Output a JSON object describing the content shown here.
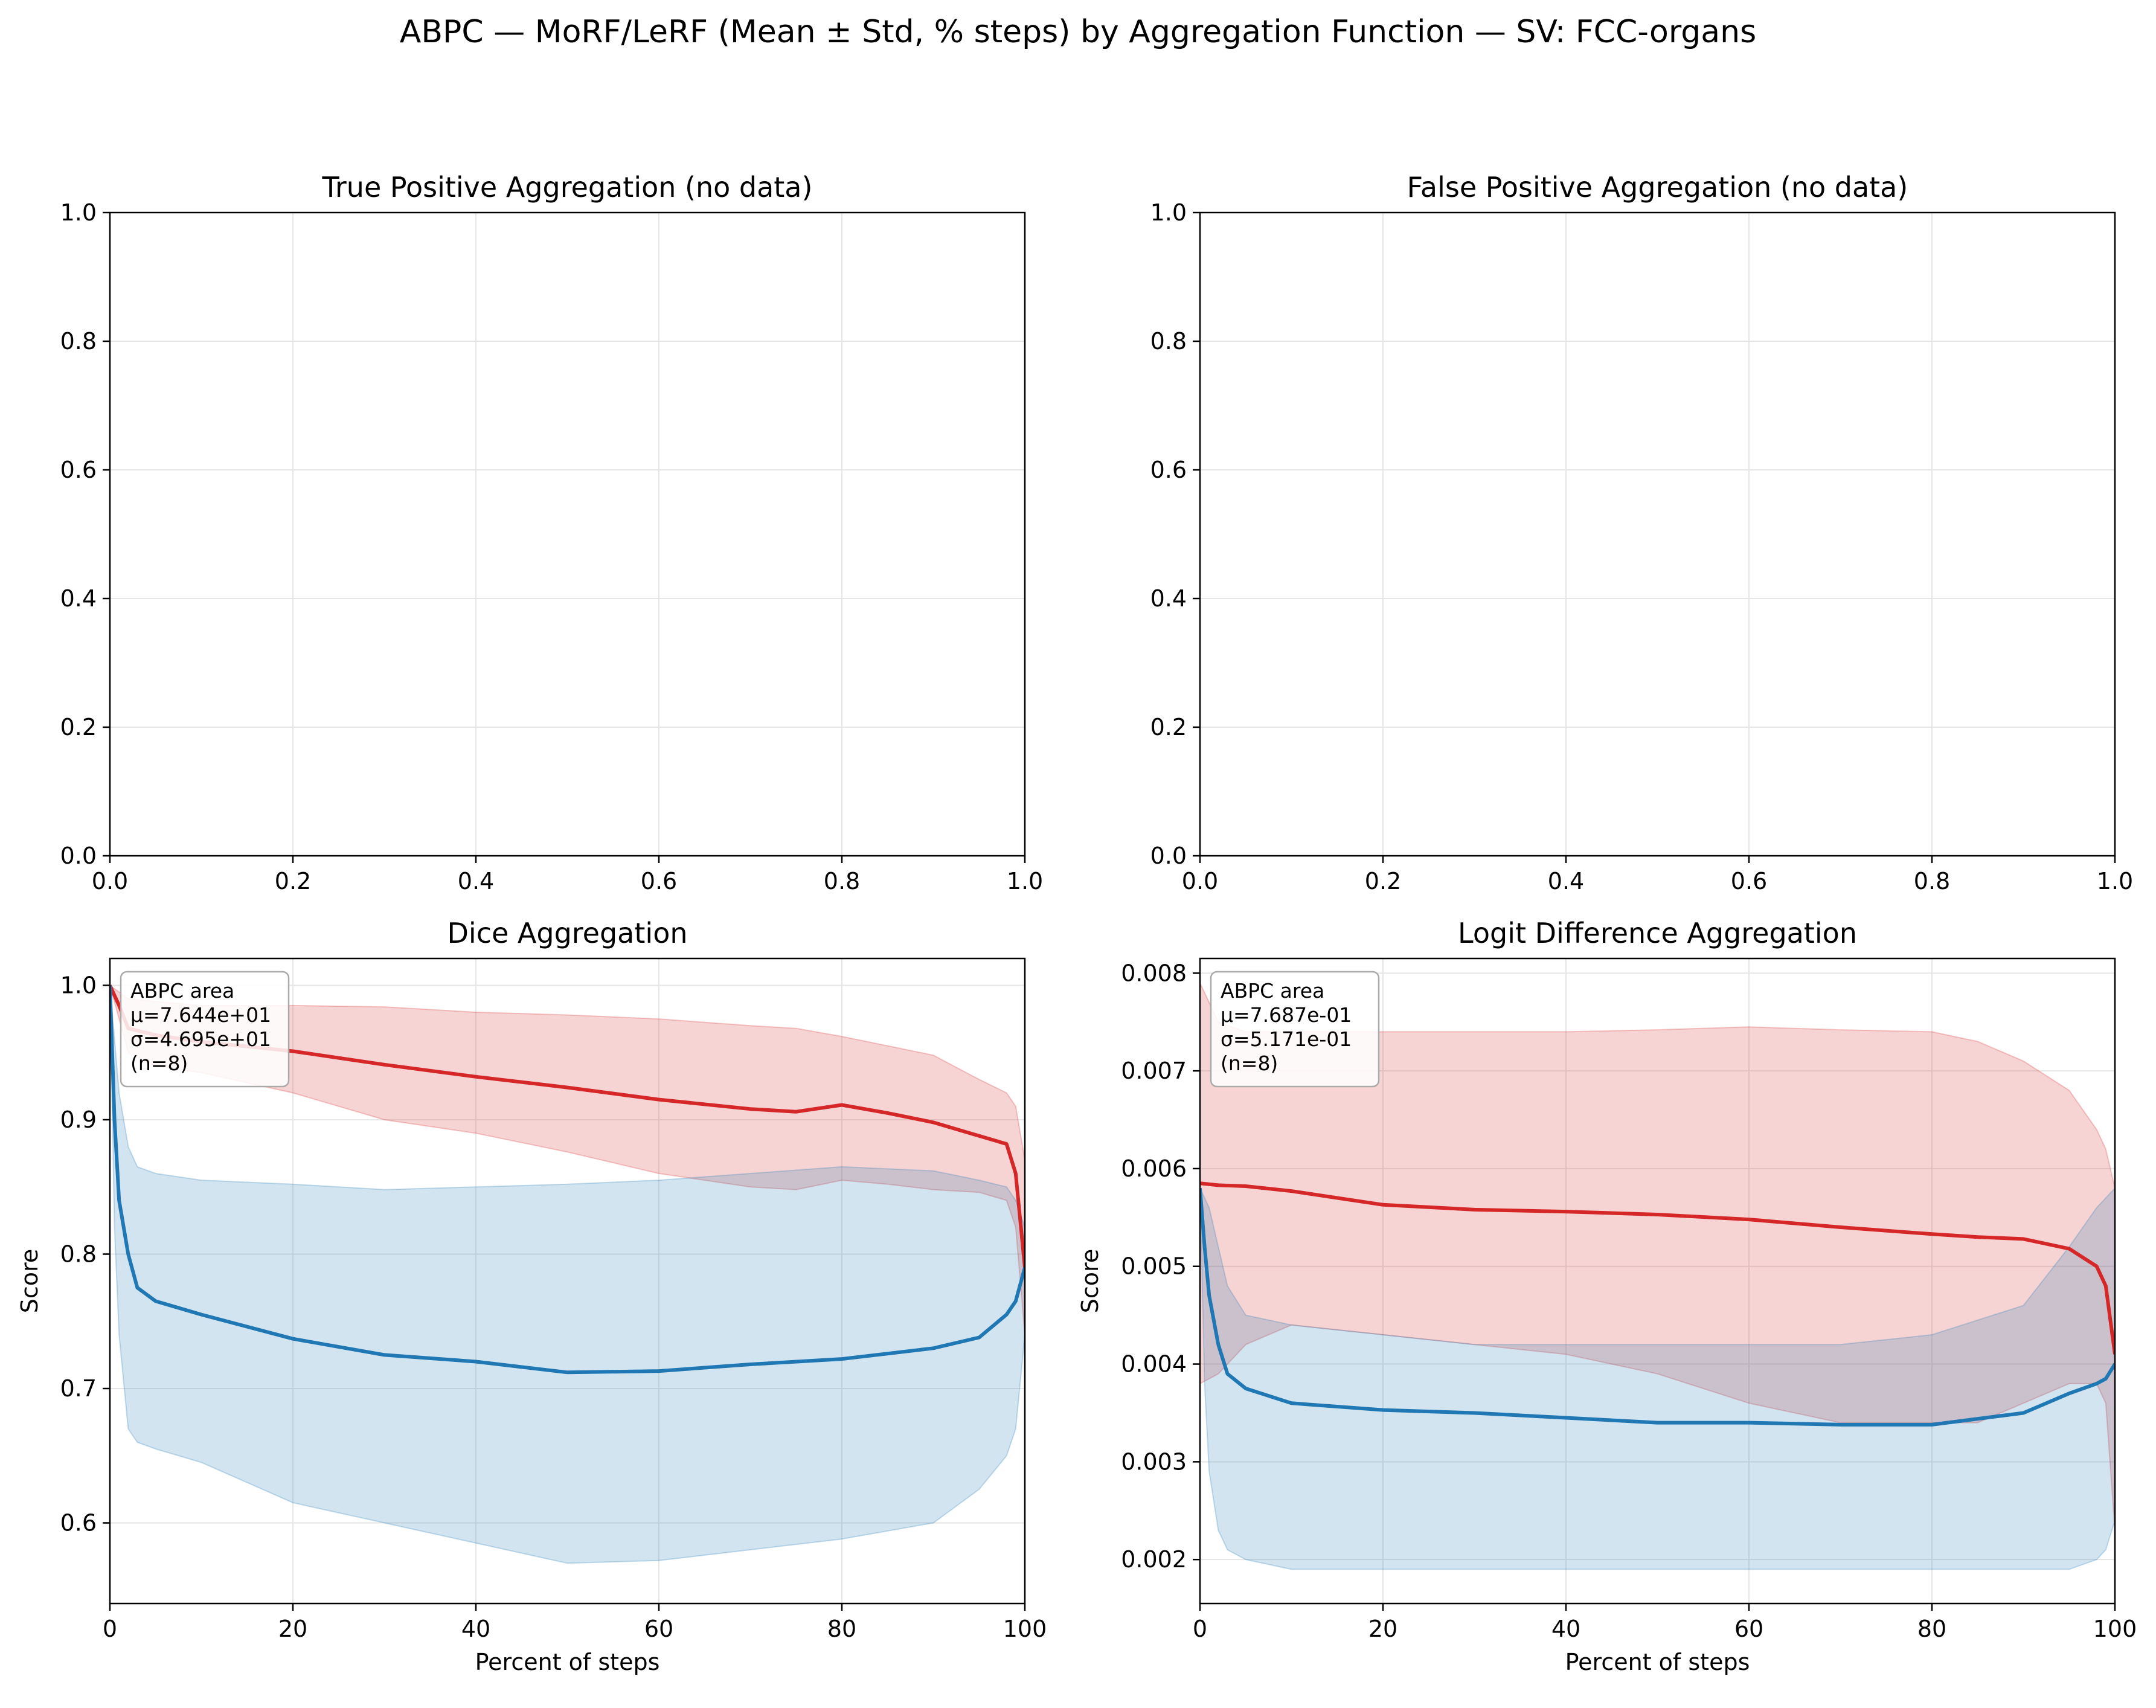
{
  "figure": {
    "suptitle": "ABPC — MoRF/LeRF (Mean ± Std, % steps) by Aggregation Function — SV: FCC-organs"
  },
  "colors": {
    "morf": "#d62728",
    "lerf": "#1f77b4",
    "axis": "#000000",
    "grid": "#e6e6e6"
  },
  "chart_data": [
    {
      "type": "line",
      "title": "True Positive Aggregation (no data)",
      "xlabel": "",
      "ylabel": "",
      "xlim": [
        0,
        1
      ],
      "ylim": [
        0,
        1
      ],
      "xticks": [
        "0.0",
        "0.2",
        "0.4",
        "0.6",
        "0.8",
        "1.0"
      ],
      "yticks": [
        "0.0",
        "0.2",
        "0.4",
        "0.6",
        "0.8",
        "1.0"
      ],
      "grid": true,
      "series": []
    },
    {
      "type": "line",
      "title": "False Positive Aggregation (no data)",
      "xlabel": "",
      "ylabel": "",
      "xlim": [
        0,
        1
      ],
      "ylim": [
        0,
        1
      ],
      "xticks": [
        "0.0",
        "0.2",
        "0.4",
        "0.6",
        "0.8",
        "1.0"
      ],
      "yticks": [
        "0.0",
        "0.2",
        "0.4",
        "0.6",
        "0.8",
        "1.0"
      ],
      "grid": true,
      "series": []
    },
    {
      "type": "line",
      "title": "Dice Aggregation",
      "xlabel": "Percent of steps",
      "ylabel": "Score",
      "xlim": [
        0,
        100
      ],
      "ylim": [
        0.54,
        1.02
      ],
      "xticks": [
        "0",
        "20",
        "40",
        "60",
        "80",
        "100"
      ],
      "yticks": [
        "0.6",
        "0.7",
        "0.8",
        "0.9",
        "1.0"
      ],
      "grid": true,
      "annotation": [
        "ABPC area",
        "μ=7.644e+01",
        "σ=4.695e+01",
        "(n=8)"
      ],
      "series": [
        {
          "color": "#d62728",
          "x": [
            0,
            1,
            2,
            5,
            10,
            20,
            30,
            40,
            50,
            60,
            70,
            75,
            80,
            85,
            90,
            95,
            98,
            99,
            100
          ],
          "mean": [
            1.0,
            0.985,
            0.968,
            0.963,
            0.958,
            0.951,
            0.941,
            0.932,
            0.924,
            0.915,
            0.908,
            0.906,
            0.911,
            0.905,
            0.898,
            0.888,
            0.882,
            0.86,
            0.79
          ],
          "upper": [
            1.0,
            0.995,
            0.99,
            0.988,
            0.985,
            0.985,
            0.984,
            0.98,
            0.978,
            0.975,
            0.97,
            0.968,
            0.962,
            0.955,
            0.948,
            0.93,
            0.92,
            0.91,
            0.87
          ],
          "lower": [
            1.0,
            0.975,
            0.95,
            0.94,
            0.935,
            0.92,
            0.9,
            0.89,
            0.876,
            0.86,
            0.85,
            0.848,
            0.855,
            0.852,
            0.848,
            0.846,
            0.84,
            0.82,
            0.74
          ]
        },
        {
          "color": "#1f77b4",
          "x": [
            0,
            0.5,
            1,
            2,
            3,
            5,
            10,
            20,
            30,
            40,
            50,
            60,
            70,
            80,
            90,
            95,
            98,
            99,
            100
          ],
          "mean": [
            1.0,
            0.9,
            0.84,
            0.8,
            0.775,
            0.765,
            0.755,
            0.737,
            0.725,
            0.72,
            0.712,
            0.713,
            0.718,
            0.722,
            0.73,
            0.738,
            0.755,
            0.765,
            0.79
          ],
          "upper": [
            1.0,
            0.96,
            0.92,
            0.88,
            0.865,
            0.86,
            0.855,
            0.852,
            0.848,
            0.85,
            0.852,
            0.855,
            0.86,
            0.865,
            0.862,
            0.855,
            0.85,
            0.84,
            0.82
          ],
          "lower": [
            1.0,
            0.82,
            0.74,
            0.67,
            0.66,
            0.655,
            0.645,
            0.615,
            0.6,
            0.585,
            0.57,
            0.572,
            0.58,
            0.588,
            0.6,
            0.625,
            0.65,
            0.67,
            0.74
          ]
        }
      ]
    },
    {
      "type": "line",
      "title": "Logit Difference Aggregation",
      "xlabel": "Percent of steps",
      "ylabel": "Score",
      "xlim": [
        0,
        100
      ],
      "ylim": [
        0.00155,
        0.00815
      ],
      "xticks": [
        "0",
        "20",
        "40",
        "60",
        "80",
        "100"
      ],
      "yticks": [
        "0.002",
        "0.003",
        "0.004",
        "0.005",
        "0.006",
        "0.007",
        "0.008"
      ],
      "grid": true,
      "annotation": [
        "ABPC area",
        "μ=7.687e-01",
        "σ=5.171e-01",
        "(n=8)"
      ],
      "series": [
        {
          "color": "#d62728",
          "x": [
            0,
            2,
            5,
            10,
            20,
            30,
            40,
            50,
            60,
            70,
            80,
            85,
            90,
            95,
            98,
            99,
            100
          ],
          "mean": [
            0.00585,
            0.00583,
            0.00582,
            0.00577,
            0.00563,
            0.00558,
            0.00556,
            0.00553,
            0.00548,
            0.0054,
            0.00533,
            0.0053,
            0.00528,
            0.00518,
            0.005,
            0.0048,
            0.0041
          ],
          "upper": [
            0.0079,
            0.0075,
            0.0074,
            0.0074,
            0.0074,
            0.0074,
            0.0074,
            0.00742,
            0.00745,
            0.00742,
            0.0074,
            0.0073,
            0.0071,
            0.0068,
            0.0064,
            0.0062,
            0.0058
          ],
          "lower": [
            0.0038,
            0.0039,
            0.0042,
            0.0044,
            0.0043,
            0.0042,
            0.0041,
            0.0039,
            0.0036,
            0.0034,
            0.0034,
            0.0034,
            0.0036,
            0.0038,
            0.0038,
            0.0036,
            0.0023
          ]
        },
        {
          "color": "#1f77b4",
          "x": [
            0,
            0.5,
            1,
            2,
            3,
            5,
            10,
            20,
            30,
            40,
            50,
            60,
            70,
            80,
            90,
            95,
            98,
            99,
            100
          ],
          "mean": [
            0.0058,
            0.0052,
            0.0047,
            0.0042,
            0.0039,
            0.00375,
            0.0036,
            0.00353,
            0.0035,
            0.00345,
            0.0034,
            0.0034,
            0.00338,
            0.00338,
            0.0035,
            0.0037,
            0.0038,
            0.00385,
            0.004
          ],
          "upper": [
            0.0058,
            0.0057,
            0.0056,
            0.0052,
            0.0048,
            0.0045,
            0.0044,
            0.0043,
            0.0042,
            0.0042,
            0.0042,
            0.0042,
            0.0042,
            0.0043,
            0.0046,
            0.0052,
            0.0056,
            0.0057,
            0.0058
          ],
          "lower": [
            0.0058,
            0.0038,
            0.0029,
            0.0023,
            0.0021,
            0.002,
            0.0019,
            0.0019,
            0.0019,
            0.0019,
            0.0019,
            0.0019,
            0.0019,
            0.0019,
            0.0019,
            0.0019,
            0.002,
            0.0021,
            0.0024
          ]
        }
      ]
    }
  ]
}
